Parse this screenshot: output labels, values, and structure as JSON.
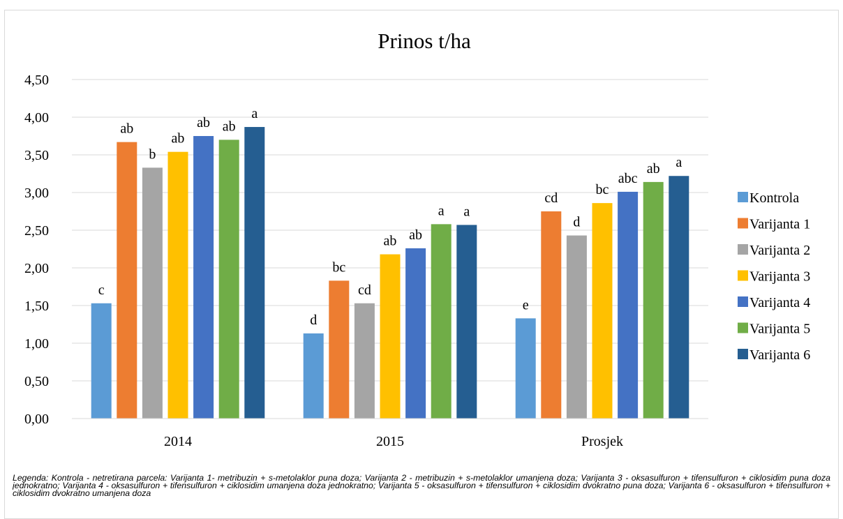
{
  "chart_data": {
    "type": "bar",
    "title": "Prinos t/ha",
    "categories": [
      "2014",
      "2015",
      "Prosjek"
    ],
    "ylim": [
      0,
      4.5
    ],
    "yticks": [
      "0,00",
      "0,50",
      "1,00",
      "1,50",
      "2,00",
      "2,50",
      "3,00",
      "3,50",
      "4,00",
      "4,50"
    ],
    "grid": true,
    "legend_position": "right",
    "series": [
      {
        "name": "Kontrola",
        "color": "#5b9bd5",
        "values": [
          1.53,
          1.13,
          1.33
        ],
        "labels": [
          "c",
          "d",
          "e"
        ]
      },
      {
        "name": "Varijanta 1",
        "color": "#ed7d31",
        "values": [
          3.67,
          1.83,
          2.75
        ],
        "labels": [
          "ab",
          "bc",
          "cd"
        ]
      },
      {
        "name": "Varijanta 2",
        "color": "#a5a5a5",
        "values": [
          3.33,
          1.53,
          2.43
        ],
        "labels": [
          "b",
          "cd",
          "d"
        ]
      },
      {
        "name": "Varijanta 3",
        "color": "#ffc000",
        "values": [
          3.54,
          2.18,
          2.86
        ],
        "labels": [
          "ab",
          "ab",
          "bc"
        ]
      },
      {
        "name": "Varijanta 4",
        "color": "#4472c4",
        "values": [
          3.75,
          2.26,
          3.01
        ],
        "labels": [
          "ab",
          "ab",
          "abc"
        ]
      },
      {
        "name": "Varijanta 5",
        "color": "#70ad47",
        "values": [
          3.7,
          2.58,
          3.14
        ],
        "labels": [
          "ab",
          "a",
          "ab"
        ]
      },
      {
        "name": "Varijanta 6",
        "color": "#255e91",
        "values": [
          3.87,
          2.57,
          3.22
        ],
        "labels": [
          "a",
          "a",
          "a"
        ]
      }
    ]
  },
  "note": "Legenda: Kontrola - netretirana parcela: Varijanta 1- metribuzin + s-metolaklor puna doza; Varijanta 2 - metribuzin + s-metolaklor umanjena doza; Varijanta 3 - oksasulfuron + tifensulfuron + ciklosidim puna doza jednokratno; Varijanta 4 - oksasulfuron + tifensulfuron + ciklosidim umanjena doza jednokratno; Varijanta 5 - oksasulfuron + tifensulfuron + ciklosidim dvokratno puna doza; Varijanta 6 - oksasulfuron + tifensulfuron + ciklosidim dvokratno umanjena doza"
}
